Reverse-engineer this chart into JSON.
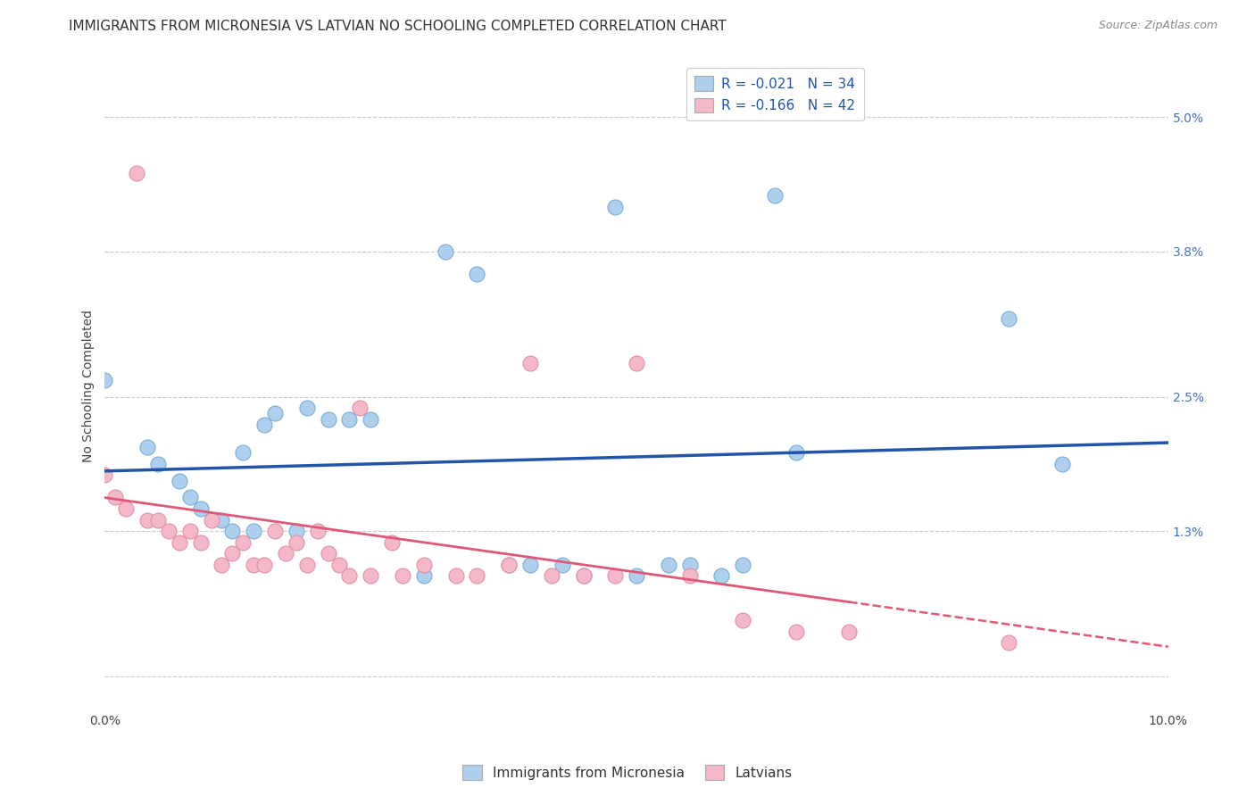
{
  "title": "IMMIGRANTS FROM MICRONESIA VS LATVIAN NO SCHOOLING COMPLETED CORRELATION CHART",
  "source": "Source: ZipAtlas.com",
  "ylabel": "No Schooling Completed",
  "series1_name": "Immigrants from Micronesia",
  "series1_color": "#aed0ee",
  "series1_edge_color": "#7aadd4",
  "series1_line_color": "#2255aa",
  "series2_name": "Latvians",
  "series2_color": "#f4b8c8",
  "series2_edge_color": "#e090a8",
  "series2_line_color": "#e05878",
  "xlim": [
    0.0,
    0.1
  ],
  "ylim": [
    -0.003,
    0.055
  ],
  "ytick_vals": [
    0.0,
    0.013,
    0.025,
    0.038,
    0.05
  ],
  "ytick_labels": [
    "",
    "1.3%",
    "2.5%",
    "3.8%",
    "5.0%"
  ],
  "xtick_vals": [
    0.0,
    0.025,
    0.05,
    0.075,
    0.1
  ],
  "xtick_labels": [
    "0.0%",
    "",
    "",
    "",
    "10.0%"
  ],
  "background_color": "#ffffff",
  "grid_color": "#cccccc",
  "title_fontsize": 11,
  "source_fontsize": 9,
  "axis_label_fontsize": 10,
  "tick_fontsize": 10,
  "marker_size": 150,
  "s1_x": [
    0.0,
    0.004,
    0.005,
    0.007,
    0.008,
    0.009,
    0.011,
    0.012,
    0.013,
    0.014,
    0.015,
    0.016,
    0.018,
    0.019,
    0.021,
    0.023,
    0.025,
    0.03,
    0.032,
    0.035,
    0.038,
    0.04,
    0.043,
    0.045,
    0.048,
    0.05,
    0.053,
    0.055,
    0.058,
    0.06,
    0.063,
    0.065,
    0.085,
    0.09
  ],
  "s1_y": [
    0.0265,
    0.0205,
    0.019,
    0.0175,
    0.016,
    0.015,
    0.014,
    0.013,
    0.02,
    0.013,
    0.0225,
    0.0235,
    0.013,
    0.024,
    0.023,
    0.023,
    0.023,
    0.009,
    0.038,
    0.036,
    0.01,
    0.01,
    0.01,
    0.009,
    0.042,
    0.009,
    0.01,
    0.01,
    0.009,
    0.01,
    0.043,
    0.02,
    0.032,
    0.019
  ],
  "s2_x": [
    0.0,
    0.001,
    0.002,
    0.003,
    0.004,
    0.005,
    0.006,
    0.007,
    0.008,
    0.009,
    0.01,
    0.011,
    0.012,
    0.013,
    0.014,
    0.015,
    0.016,
    0.017,
    0.018,
    0.019,
    0.02,
    0.021,
    0.022,
    0.023,
    0.024,
    0.025,
    0.027,
    0.028,
    0.03,
    0.033,
    0.035,
    0.038,
    0.04,
    0.042,
    0.045,
    0.048,
    0.05,
    0.055,
    0.06,
    0.065,
    0.07,
    0.085
  ],
  "s2_y": [
    0.018,
    0.016,
    0.015,
    0.045,
    0.014,
    0.014,
    0.013,
    0.012,
    0.013,
    0.012,
    0.014,
    0.01,
    0.011,
    0.012,
    0.01,
    0.01,
    0.013,
    0.011,
    0.012,
    0.01,
    0.013,
    0.011,
    0.01,
    0.009,
    0.024,
    0.009,
    0.012,
    0.009,
    0.01,
    0.009,
    0.009,
    0.01,
    0.028,
    0.009,
    0.009,
    0.009,
    0.028,
    0.009,
    0.005,
    0.004,
    0.004,
    0.003
  ],
  "legend1_text": "R = -0.021   N = 34",
  "legend2_text": "R = -0.166   N = 42"
}
